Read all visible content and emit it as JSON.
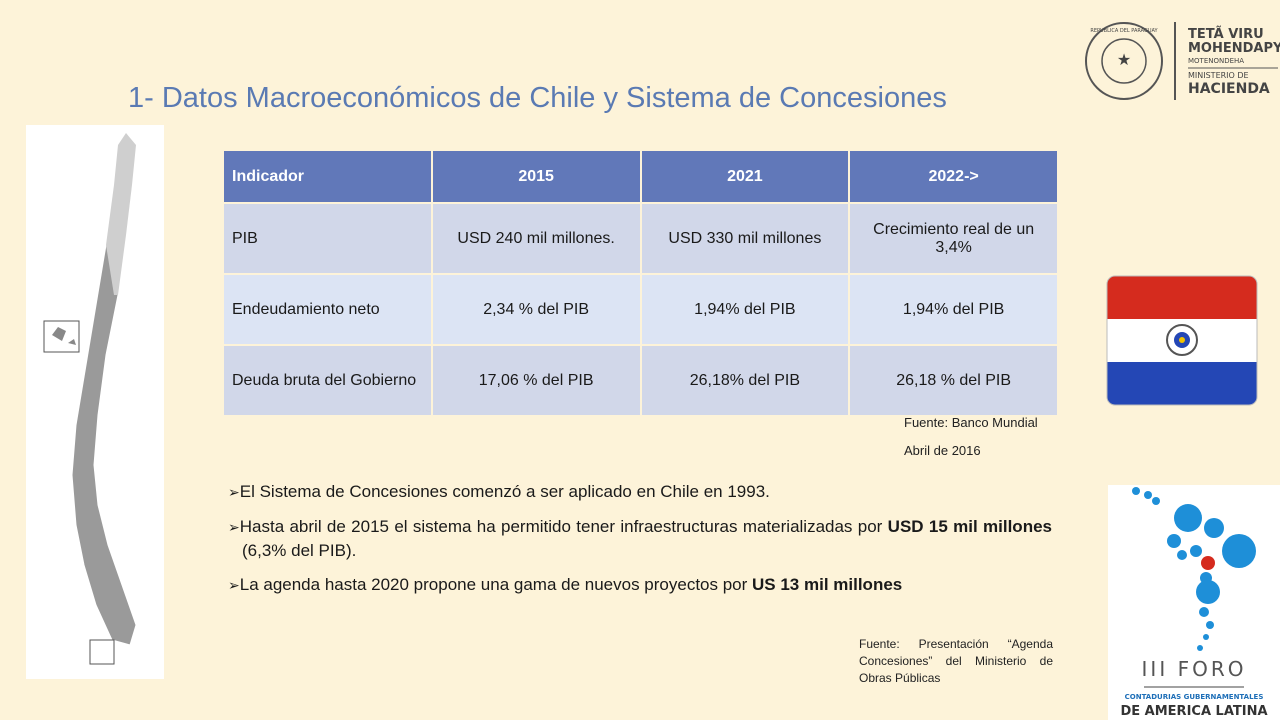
{
  "header": {
    "title": "1- Datos Macroeconómicos de Chile y Sistema de Concesiones"
  },
  "logo": {
    "seal": "REPUBLICA DEL PARAGUAY",
    "line1": "TETÃ VIRU",
    "line2": "MOHENDAPY",
    "line3": "MOTENONDEHA",
    "line4": "MINISTERIO DE",
    "line5": "HACIENDA"
  },
  "table": {
    "header": [
      "Indicador",
      "2015",
      "2021",
      "2022->"
    ],
    "rows": [
      [
        "PIB",
        "USD 240 mil millones.",
        "USD 330 mil millones",
        "Crecimiento real de un 3,4%"
      ],
      [
        "Endeudamiento  neto",
        "2,34 % del PIB",
        "1,94% del PIB",
        "1,94% del PIB"
      ],
      [
        "Deuda bruta del Gobierno",
        "17,06 % del PIB",
        "26,18% del PIB",
        "26,18 % del PIB"
      ]
    ]
  },
  "source1": {
    "line1": "Fuente: Banco Mundial",
    "line2": "Abril de 2016"
  },
  "bullets": [
    [
      {
        "text": "El Sistema de Concesiones comenzó a ser aplicado en Chile en 1993.",
        "bold": false
      }
    ],
    [
      {
        "text": "Hasta abril de 2015 el sistema ha permitido tener infraestructuras materializadas por ",
        "bold": false
      },
      {
        "text": "USD 15 mil millones",
        "bold": true
      },
      {
        "text": " (6,3% del PIB).",
        "bold": false
      }
    ],
    [
      {
        "text": "La agenda hasta 2020 propone una gama de nuevos proyectos por ",
        "bold": false
      },
      {
        "text": "US 13 mil millones",
        "bold": true
      }
    ]
  ],
  "source2": "Fuente: Presentación “Agenda Concesiones” del Ministerio de Obras Públicas",
  "foro": {
    "title": "III FORO",
    "line1": "CONTADURIAS GUBERNAMENTALES",
    "line2": "DE AMERICA LATINA"
  }
}
